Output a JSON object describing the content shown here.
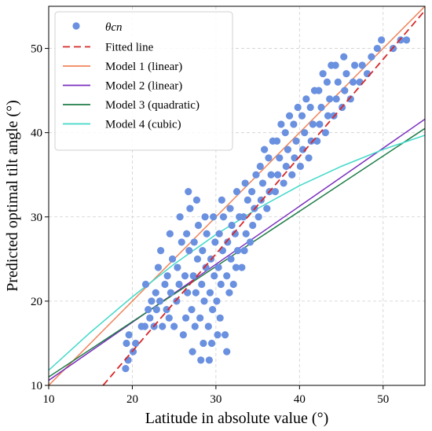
{
  "chart_data": {
    "type": "scatter",
    "title": "",
    "xlabel": "Latitude in absolute value (°)",
    "ylabel": "Predicted optimal tilt angle (°)",
    "xlim": [
      10,
      55
    ],
    "ylim": [
      10,
      55
    ],
    "xticks": [
      "10",
      "20",
      "30",
      "40",
      "50"
    ],
    "yticks": [
      "10",
      "20",
      "30",
      "40",
      "50"
    ],
    "grid": true,
    "legend_position": "top-left",
    "scatter": {
      "name": "θcn",
      "color": "#6a90e0",
      "points": [
        [
          19.2,
          12
        ],
        [
          19.5,
          13
        ],
        [
          19.3,
          15
        ],
        [
          19.6,
          16
        ],
        [
          20.1,
          14
        ],
        [
          20.4,
          15
        ],
        [
          21.1,
          17
        ],
        [
          21.5,
          17
        ],
        [
          21.9,
          19
        ],
        [
          21.6,
          22
        ],
        [
          22.1,
          18
        ],
        [
          22.3,
          20
        ],
        [
          22.6,
          17
        ],
        [
          22.9,
          19
        ],
        [
          22.8,
          21
        ],
        [
          23.1,
          24
        ],
        [
          23.3,
          20
        ],
        [
          23.6,
          17
        ],
        [
          23.9,
          22
        ],
        [
          23.4,
          26
        ],
        [
          24.1,
          19
        ],
        [
          24.4,
          18
        ],
        [
          24.6,
          21
        ],
        [
          24.2,
          23
        ],
        [
          24.8,
          25
        ],
        [
          24.5,
          28
        ],
        [
          25.0,
          17
        ],
        [
          25.3,
          20
        ],
        [
          25.6,
          22
        ],
        [
          25.4,
          24
        ],
        [
          25.9,
          27
        ],
        [
          25.7,
          30
        ],
        [
          26.1,
          16
        ],
        [
          26.4,
          18
        ],
        [
          26.6,
          21
        ],
        [
          26.3,
          23
        ],
        [
          26.8,
          26
        ],
        [
          26.5,
          28
        ],
        [
          26.9,
          31
        ],
        [
          26.7,
          33
        ],
        [
          27.2,
          14
        ],
        [
          27.5,
          17
        ],
        [
          27.1,
          19
        ],
        [
          27.6,
          21
        ],
        [
          27.3,
          23
        ],
        [
          27.8,
          25
        ],
        [
          27.4,
          27
        ],
        [
          27.9,
          29
        ],
        [
          27.7,
          32
        ],
        [
          28.2,
          13
        ],
        [
          28.5,
          15
        ],
        [
          28.1,
          18
        ],
        [
          28.6,
          20
        ],
        [
          28.3,
          22
        ],
        [
          28.8,
          24
        ],
        [
          28.4,
          26
        ],
        [
          28.9,
          28
        ],
        [
          28.7,
          30
        ],
        [
          29.2,
          13
        ],
        [
          29.5,
          15
        ],
        [
          29.1,
          17
        ],
        [
          29.6,
          19
        ],
        [
          29.3,
          21
        ],
        [
          29.8,
          23
        ],
        [
          29.4,
          25
        ],
        [
          29.9,
          27
        ],
        [
          29.7,
          30
        ],
        [
          30.2,
          16
        ],
        [
          30.5,
          18
        ],
        [
          30.1,
          20
        ],
        [
          30.6,
          22
        ],
        [
          30.3,
          24
        ],
        [
          30.8,
          26
        ],
        [
          30.4,
          28
        ],
        [
          30.9,
          30
        ],
        [
          30.7,
          32
        ],
        [
          31.3,
          14
        ],
        [
          31.1,
          16
        ],
        [
          31.6,
          21
        ],
        [
          31.3,
          23
        ],
        [
          31.8,
          25
        ],
        [
          31.4,
          27
        ],
        [
          31.9,
          29
        ],
        [
          31.7,
          31
        ],
        [
          32.1,
          22
        ],
        [
          32.4,
          24
        ],
        [
          32.6,
          26
        ],
        [
          32.3,
          28
        ],
        [
          32.8,
          30
        ],
        [
          32.5,
          33
        ],
        [
          33.1,
          24
        ],
        [
          33.4,
          26
        ],
        [
          33.6,
          28
        ],
        [
          33.3,
          30
        ],
        [
          33.8,
          32
        ],
        [
          33.5,
          34
        ],
        [
          34.1,
          27
        ],
        [
          34.4,
          29
        ],
        [
          34.6,
          31
        ],
        [
          34.3,
          33
        ],
        [
          34.8,
          35
        ],
        [
          35.1,
          30
        ],
        [
          35.4,
          32
        ],
        [
          35.6,
          34
        ],
        [
          35.3,
          36
        ],
        [
          35.8,
          38
        ],
        [
          36.1,
          31
        ],
        [
          36.4,
          33
        ],
        [
          36.6,
          35
        ],
        [
          36.3,
          37
        ],
        [
          36.8,
          39
        ],
        [
          37.1,
          33
        ],
        [
          37.4,
          35
        ],
        [
          37.6,
          37
        ],
        [
          37.3,
          39
        ],
        [
          37.8,
          41
        ],
        [
          38.1,
          34
        ],
        [
          38.4,
          36
        ],
        [
          38.6,
          38
        ],
        [
          38.3,
          40
        ],
        [
          38.8,
          42
        ],
        [
          39.1,
          35
        ],
        [
          39.4,
          37
        ],
        [
          39.6,
          39
        ],
        [
          39.3,
          41
        ],
        [
          39.8,
          43
        ],
        [
          40.1,
          36
        ],
        [
          40.4,
          38
        ],
        [
          40.6,
          40
        ],
        [
          40.3,
          42
        ],
        [
          40.8,
          44
        ],
        [
          41.1,
          37
        ],
        [
          41.4,
          39
        ],
        [
          41.6,
          41
        ],
        [
          41.3,
          43
        ],
        [
          41.8,
          45
        ],
        [
          42.1,
          39
        ],
        [
          42.4,
          41
        ],
        [
          42.6,
          43
        ],
        [
          42.3,
          45
        ],
        [
          42.8,
          47
        ],
        [
          43.1,
          40
        ],
        [
          43.4,
          42
        ],
        [
          43.6,
          44
        ],
        [
          43.3,
          46
        ],
        [
          43.8,
          48
        ],
        [
          44.1,
          42
        ],
        [
          44.4,
          44
        ],
        [
          44.6,
          46
        ],
        [
          44.3,
          48
        ],
        [
          45.1,
          43
        ],
        [
          45.4,
          45
        ],
        [
          45.6,
          47
        ],
        [
          45.3,
          49
        ],
        [
          46.1,
          44
        ],
        [
          46.4,
          46
        ],
        [
          46.6,
          48
        ],
        [
          47.2,
          46
        ],
        [
          47.5,
          48
        ],
        [
          48.1,
          47
        ],
        [
          48.6,
          49
        ],
        [
          49.3,
          50
        ],
        [
          49.8,
          51
        ],
        [
          51.2,
          50
        ],
        [
          52.1,
          51
        ],
        [
          52.8,
          51
        ]
      ]
    },
    "series": [
      {
        "name": "Fitted line",
        "color": "#d62728",
        "dash": true,
        "x": [
          16.5,
          55
        ],
        "y": [
          10,
          54.5
        ]
      },
      {
        "name": "Model 1 (linear)",
        "color": "#f0845a",
        "dash": false,
        "x": [
          10,
          55
        ],
        "y": [
          10,
          55
        ]
      },
      {
        "name": "Model 2 (linear)",
        "color": "#7b2fbe",
        "dash": false,
        "x": [
          10,
          55
        ],
        "y": [
          10.6,
          41.6
        ]
      },
      {
        "name": "Model 3 (quadratic)",
        "color": "#1e7d47",
        "dash": false,
        "x": [
          10,
          55
        ],
        "y": [
          11.0,
          40.5
        ]
      },
      {
        "name": "Model 4 (cubic)",
        "color": "#40d9c9",
        "dash": false,
        "x": [
          10,
          15,
          20,
          25,
          30,
          35,
          40,
          45,
          50,
          55
        ],
        "y": [
          11.8,
          16.3,
          20.5,
          24.4,
          27.9,
          31.0,
          33.7,
          36.0,
          38.0,
          39.7
        ]
      }
    ]
  }
}
